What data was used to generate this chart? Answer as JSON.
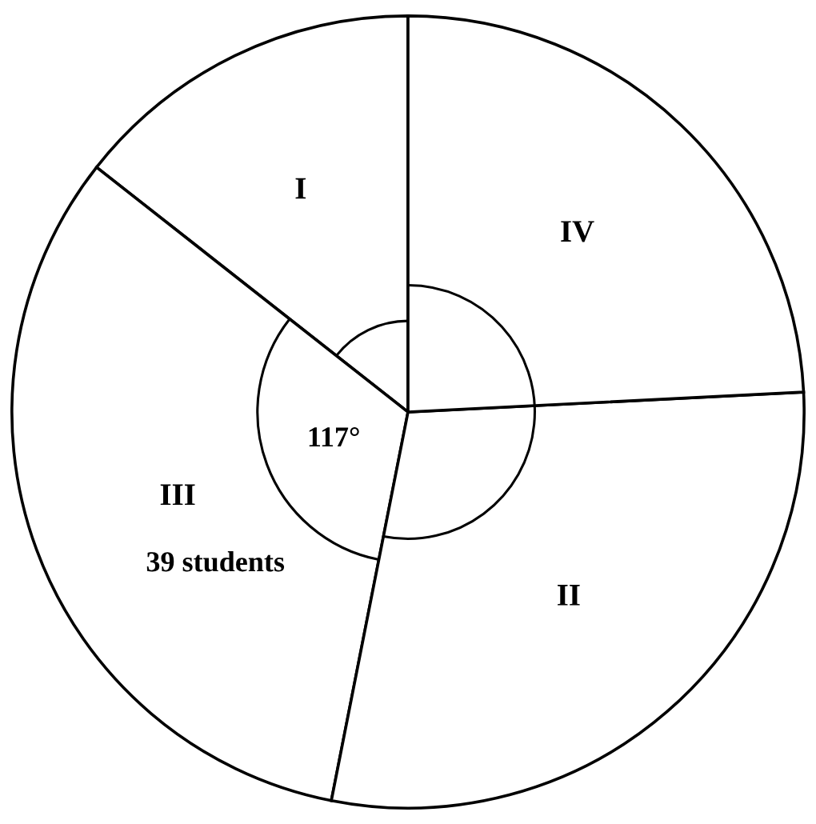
{
  "chart_data": {
    "type": "pie",
    "categories": [
      "I",
      "III",
      "II",
      "IV"
    ],
    "values": [
      14.4,
      32.5,
      28.9,
      24.2
    ],
    "colors": [
      "#ffffff",
      "#ffffff",
      "#ffffff",
      "#ffffff"
    ],
    "annotations": [
      {
        "text": "117°",
        "x": "III"
      },
      {
        "text": "39 students",
        "x": "III"
      }
    ]
  }
}
